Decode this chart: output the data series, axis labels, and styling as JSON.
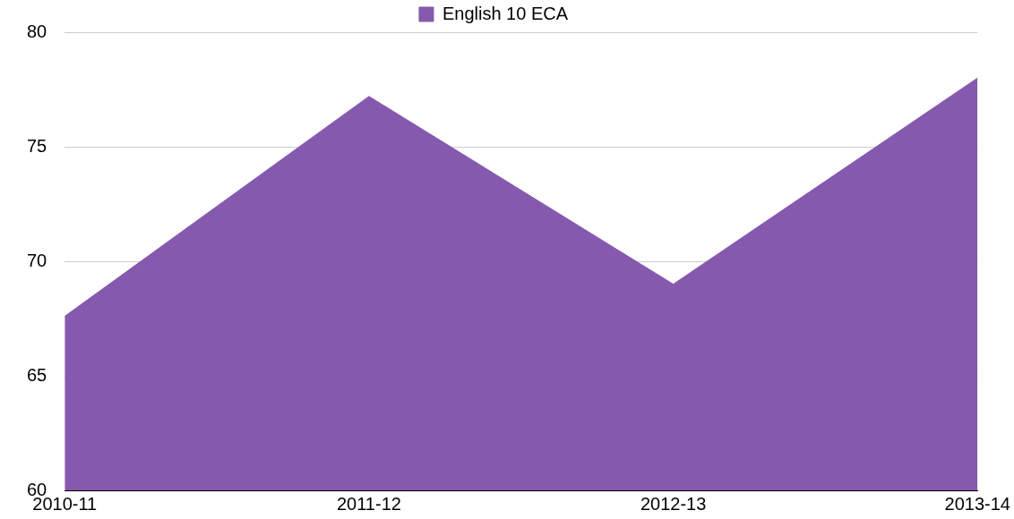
{
  "chart_data": {
    "type": "area",
    "categories": [
      "2010-11",
      "2011-12",
      "2012-13",
      "2013-14"
    ],
    "series": [
      {
        "name": "English 10 ECA",
        "color": "#8559ad",
        "values": [
          67.6,
          77.2,
          69.0,
          78.0
        ]
      }
    ],
    "ylim": [
      60,
      80
    ],
    "yticks": [
      60,
      65,
      70,
      75,
      80
    ],
    "grid": "y",
    "legend": "top",
    "marker": "none"
  }
}
